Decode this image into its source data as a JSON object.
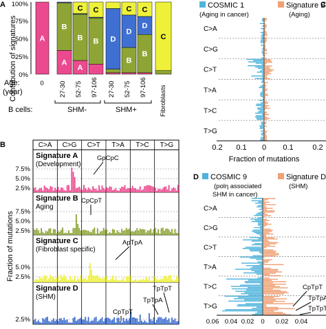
{
  "panel_letters": {
    "A": "A",
    "B": "B",
    "C": "C",
    "D": "D"
  },
  "colors": {
    "pink": "#ec4a8f",
    "olive": "#8ea535",
    "blue": "#3f6fd1",
    "yellow": "#eef13a",
    "teal": "#4fb3dc",
    "salmon": "#f0a074",
    "white": "#ffffff"
  },
  "panel_a": {
    "ylabel": "Contribution of signatures",
    "yticks": [
      "0%",
      "25%",
      "50%",
      "75%",
      "100%"
    ],
    "age_label": "Age:",
    "year_label": "(year)",
    "zero_label": "0",
    "age_groups": [
      "27-30",
      "52-75",
      "97-106",
      "27-30",
      "52-75",
      "97-106"
    ],
    "fibroblasts_label": "Fibroblasts",
    "bcells_label": "B cells:",
    "shm_minus": "SHM-",
    "shm_plus": "SHM+"
  },
  "panel_b": {
    "ylabel": "Fraction of mutations",
    "categories": [
      "C>A",
      "C>G",
      "C>T",
      "T>A",
      "T>C",
      "T>G"
    ],
    "annotations": [
      "GpCpC",
      "CpCpT",
      "ApTpA",
      "TpTpT",
      "TpTpA",
      "CpTpT"
    ]
  },
  "panel_c": {
    "legend_left": "COSMIC 1",
    "legend_left_sub": "(Aging in cancer)",
    "legend_right": "Signature B",
    "legend_right_sub": "(Aging)",
    "categories": [
      "C>A",
      "C>G",
      "C>T",
      "T>A",
      "T>C",
      "T>G"
    ],
    "xticks": [
      "0.2",
      "0.1",
      "0",
      "0.1",
      "0.2"
    ],
    "xlabel": "Fraction of mutations"
  },
  "panel_d": {
    "legend_left": "COSMIC 9",
    "legend_left_sub1": "(polη associated",
    "legend_left_sub2": "SHM in cancer)",
    "legend_right": "Signature D",
    "legend_right_sub": "(SHM)",
    "categories": [
      "C>A",
      "C>G",
      "C>T",
      "T>A",
      "T>C",
      "T>G"
    ],
    "xticks": [
      "0.06",
      "0.04",
      "0.02",
      "0",
      "0.02",
      "0.04"
    ],
    "annotations": [
      "CpTpT",
      "TpTpA",
      "TpTpT"
    ]
  },
  "chart_data": [
    {
      "type": "bar",
      "stacked": true,
      "categories": [
        "0",
        "27-30",
        "52-75",
        "97-106",
        "27-30",
        "52-75",
        "97-106",
        "Fibroblasts"
      ],
      "ylabel": "Contribution of signatures",
      "ylim": [
        0,
        100
      ],
      "yticks": [
        0,
        25,
        50,
        75,
        100
      ],
      "series": [
        {
          "name": "A",
          "values": [
            100,
            33,
            19,
            14,
            2,
            2,
            2,
            0
          ]
        },
        {
          "name": "B",
          "values": [
            0,
            66,
            64,
            64,
            5,
            35,
            53,
            5
          ]
        },
        {
          "name": "D",
          "values": [
            0,
            1,
            1,
            1,
            84,
            45,
            25,
            0
          ]
        },
        {
          "name": "C",
          "values": [
            0,
            0,
            16,
            21,
            9,
            18,
            20,
            95
          ]
        }
      ]
    },
    {
      "type": "bar",
      "categories": [
        "C>A",
        "C>G",
        "C>T",
        "T>A",
        "T>C",
        "T>G"
      ],
      "ylabel": "Fraction of mutations",
      "series": [
        {
          "name": "Signature A",
          "yticks": [
            "2.5%",
            "5.0%",
            "7.5%"
          ]
        },
        {
          "name": "Signature B",
          "yticks": [
            "2.5%",
            "5.0%",
            "7.5%"
          ]
        },
        {
          "name": "Signature C",
          "yticks": [
            "2.5%",
            "5.0%"
          ]
        },
        {
          "name": "Signature D",
          "yticks": [
            "2.5%"
          ]
        }
      ]
    },
    {
      "type": "bar",
      "orientation": "horizontal",
      "categories": [
        "C>A",
        "C>G",
        "C>T",
        "T>A",
        "T>C",
        "T>G"
      ],
      "xlabel": "Fraction of mutations",
      "xlim": [
        -0.2,
        0.2
      ],
      "series": [
        {
          "name": "COSMIC 1"
        },
        {
          "name": "Signature B"
        }
      ]
    },
    {
      "type": "bar",
      "orientation": "horizontal",
      "categories": [
        "C>A",
        "C>G",
        "C>T",
        "T>A",
        "T>C",
        "T>G"
      ],
      "xlim": [
        -0.06,
        0.04
      ],
      "series": [
        {
          "name": "COSMIC 9"
        },
        {
          "name": "Signature D"
        }
      ]
    }
  ]
}
